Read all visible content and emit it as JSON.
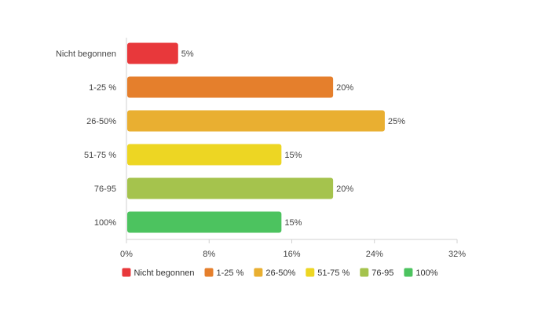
{
  "chart_data": {
    "type": "bar",
    "orientation": "horizontal",
    "title": "",
    "xlabel": "",
    "ylabel": "",
    "categories": [
      "Nicht begonnen",
      "1-25 %",
      "26-50%",
      "51-75 %",
      "76-95",
      "100%"
    ],
    "values": [
      5,
      20,
      25,
      15,
      20,
      15
    ],
    "value_labels": [
      "5%",
      "20%",
      "25%",
      "15%",
      "20%",
      "15%"
    ],
    "colors": [
      "#e8383b",
      "#e57f2c",
      "#e9af31",
      "#edd623",
      "#a5c34d",
      "#4cc35f"
    ],
    "xlim": [
      0,
      32
    ],
    "x_ticks": [
      0,
      8,
      16,
      24,
      32
    ],
    "x_tick_labels": [
      "0%",
      "8%",
      "16%",
      "24%",
      "32%"
    ],
    "grid": false,
    "legend": {
      "position": "bottom",
      "entries": [
        "Nicht begonnen",
        "1-25 %",
        "26-50%",
        "51-75 %",
        "76-95",
        "100%"
      ]
    }
  }
}
